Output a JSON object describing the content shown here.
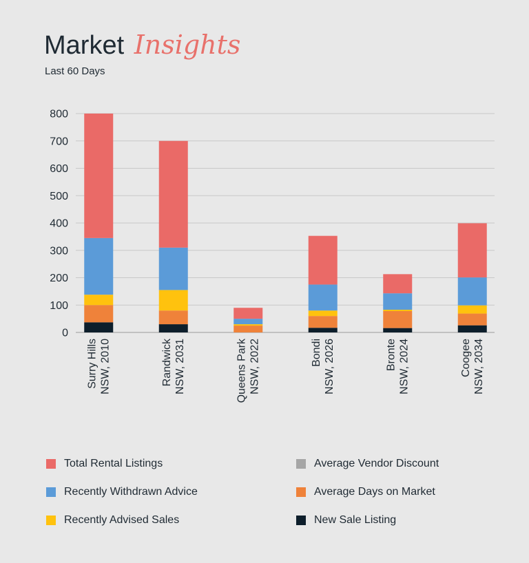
{
  "header": {
    "title_main": "Market",
    "title_accent": "Insights",
    "subtitle": "Last 60 Days"
  },
  "chart_data": {
    "type": "bar",
    "stacked": true,
    "categories": [
      [
        "Surry Hills",
        "NSW, 2010"
      ],
      [
        "Randwick",
        "NSW, 2031"
      ],
      [
        "Queens Park",
        "NSW, 2022"
      ],
      [
        "Bondi",
        "NSW, 2026"
      ],
      [
        "Bronte",
        "NSW, 2024"
      ],
      [
        "Coogee",
        "NSW, 2034"
      ]
    ],
    "ylim": [
      0,
      800
    ],
    "yticks": [
      0,
      100,
      200,
      300,
      400,
      500,
      600,
      700,
      800
    ],
    "grid": true,
    "legend_position": "bottom",
    "series": [
      {
        "name": "New Sale Listing",
        "color": "#0d1e2b",
        "values": [
          37,
          30,
          0,
          17,
          16,
          26
        ]
      },
      {
        "name": "Average Days on Market",
        "color": "#ef823a",
        "values": [
          63,
          50,
          25,
          43,
          62,
          43
        ]
      },
      {
        "name": "Recently Advised Sales",
        "color": "#ffc20e",
        "values": [
          38,
          75,
          5,
          20,
          5,
          30
        ]
      },
      {
        "name": "Recently Withdrawn Advice",
        "color": "#5b9bd8",
        "values": [
          207,
          155,
          20,
          95,
          60,
          102
        ]
      },
      {
        "name": "Average Vendor Discount",
        "color": "#a6a6a6",
        "values": [
          0,
          0,
          0,
          0,
          0,
          0
        ]
      },
      {
        "name": "Total Rental Listings",
        "color": "#ea6a67",
        "values": [
          455,
          390,
          40,
          178,
          70,
          198
        ]
      }
    ]
  },
  "legend": [
    {
      "label": "Total Rental Listings",
      "color": "#ea6a67"
    },
    {
      "label": "Average Vendor Discount",
      "color": "#a6a6a6"
    },
    {
      "label": "Recently Withdrawn Advice",
      "color": "#5b9bd8"
    },
    {
      "label": "Average Days on Market",
      "color": "#ef823a"
    },
    {
      "label": "Recently Advised Sales",
      "color": "#ffc20e"
    },
    {
      "label": "New Sale Listing",
      "color": "#0d1e2b"
    }
  ]
}
